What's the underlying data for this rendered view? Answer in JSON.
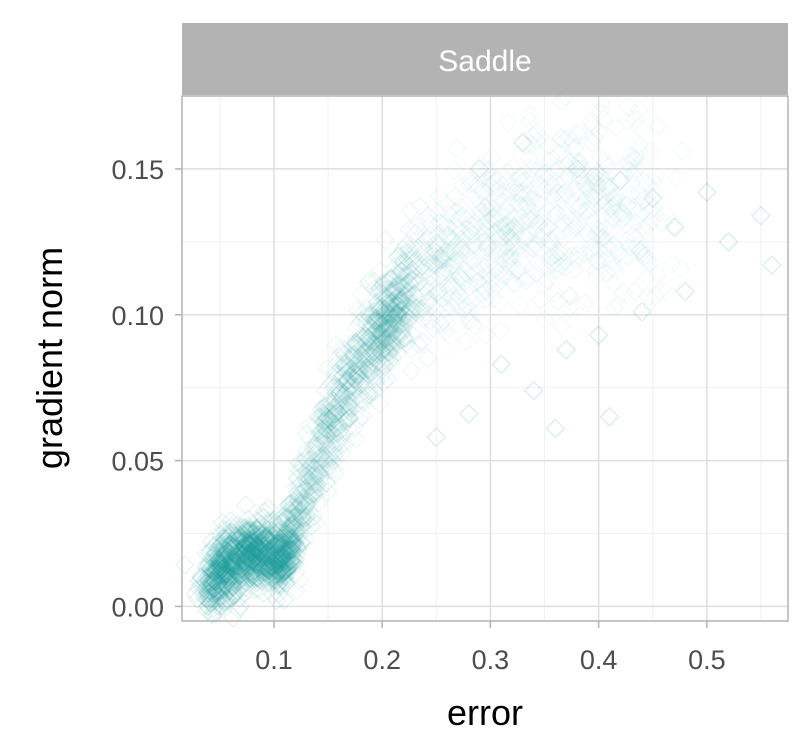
{
  "chart_data": {
    "type": "scatter",
    "facet_label": "Saddle",
    "xlabel": "error",
    "ylabel": "gradient norm",
    "xlim": [
      0.015,
      0.575
    ],
    "ylim": [
      -0.005,
      0.175
    ],
    "x_ticks": [
      0.1,
      0.2,
      0.3,
      0.4,
      0.5
    ],
    "x_tick_labels": [
      "0.1",
      "0.2",
      "0.3",
      "0.4",
      "0.5"
    ],
    "y_ticks": [
      0.0,
      0.05,
      0.1,
      0.15
    ],
    "y_tick_labels": [
      "0.00",
      "0.05",
      "0.10",
      "0.15"
    ],
    "grid": true,
    "marker": "hollow-diamond",
    "color": "#1a9e9e",
    "background": "#ffffff",
    "strip_color": "#b3b3b3",
    "trend": {
      "x": [
        0.04,
        0.05,
        0.06,
        0.07,
        0.08,
        0.09,
        0.1,
        0.11,
        0.12,
        0.13,
        0.14,
        0.15,
        0.16,
        0.18,
        0.2,
        0.22,
        0.25,
        0.28,
        0.3,
        0.33,
        0.36,
        0.4
      ],
      "y": [
        0.008,
        0.012,
        0.015,
        0.017,
        0.018,
        0.018,
        0.017,
        0.018,
        0.025,
        0.038,
        0.05,
        0.06,
        0.068,
        0.083,
        0.096,
        0.106,
        0.116,
        0.123,
        0.126,
        0.131,
        0.135,
        0.137
      ]
    },
    "outliers": [
      {
        "x": 0.38,
        "y": 0.15
      },
      {
        "x": 0.42,
        "y": 0.146
      },
      {
        "x": 0.45,
        "y": 0.14
      },
      {
        "x": 0.47,
        "y": 0.13
      },
      {
        "x": 0.5,
        "y": 0.142
      },
      {
        "x": 0.52,
        "y": 0.125
      },
      {
        "x": 0.55,
        "y": 0.134
      },
      {
        "x": 0.56,
        "y": 0.117
      },
      {
        "x": 0.44,
        "y": 0.101
      },
      {
        "x": 0.4,
        "y": 0.093
      },
      {
        "x": 0.37,
        "y": 0.088
      },
      {
        "x": 0.34,
        "y": 0.074
      },
      {
        "x": 0.31,
        "y": 0.083
      },
      {
        "x": 0.28,
        "y": 0.066
      },
      {
        "x": 0.25,
        "y": 0.058
      },
      {
        "x": 0.36,
        "y": 0.061
      },
      {
        "x": 0.41,
        "y": 0.065
      },
      {
        "x": 0.33,
        "y": 0.159
      },
      {
        "x": 0.29,
        "y": 0.15
      },
      {
        "x": 0.48,
        "y": 0.108
      }
    ]
  }
}
